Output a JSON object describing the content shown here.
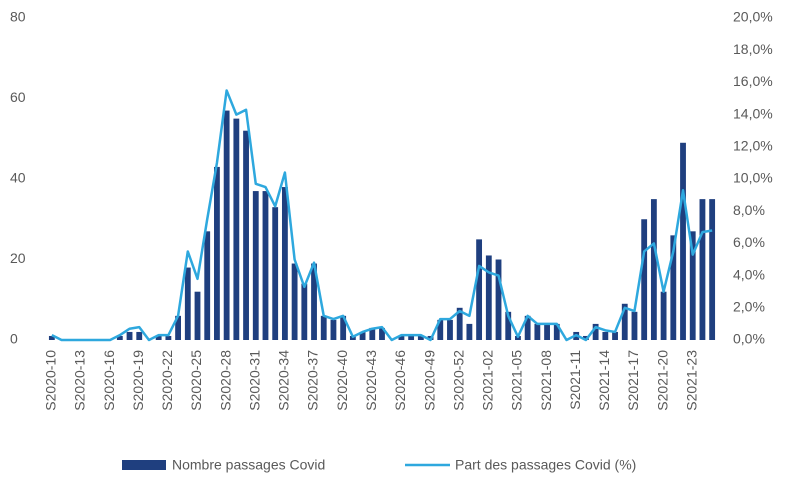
{
  "chart_data": {
    "type": "bar-line",
    "categories": [
      "S2020-10",
      null,
      null,
      "S2020-13",
      null,
      null,
      "S2020-16",
      null,
      null,
      "S2020-19",
      null,
      null,
      "S2020-22",
      null,
      null,
      "S2020-25",
      null,
      null,
      "S2020-28",
      null,
      null,
      "S2020-31",
      null,
      null,
      "S2020-34",
      null,
      null,
      "S2020-37",
      null,
      null,
      "S2020-40",
      null,
      null,
      "S2020-43",
      null,
      null,
      "S2020-46",
      null,
      null,
      "S2020-49",
      null,
      null,
      "S2020-52",
      null,
      null,
      "S2021-02",
      null,
      null,
      "S2021-05",
      null,
      null,
      "S2021-08",
      null,
      null,
      "S2021-11",
      null,
      null,
      "S2021-14",
      null,
      null,
      "S2021-17",
      null,
      null,
      "S2021-20",
      null,
      null,
      "S2021-23",
      null,
      null
    ],
    "series": [
      {
        "name": "Nombre passages Covid",
        "type": "bar",
        "color": "#1f3f7f",
        "values": [
          1,
          0,
          0,
          0,
          0,
          0,
          0,
          1,
          2,
          2,
          0,
          1,
          1,
          6,
          18,
          12,
          27,
          43,
          57,
          55,
          52,
          37,
          37,
          33,
          38,
          19,
          14,
          19,
          6,
          5,
          6,
          1,
          2,
          3,
          3,
          0,
          1,
          1,
          1,
          1,
          5,
          5,
          8,
          4,
          25,
          21,
          20,
          7,
          1,
          6,
          4,
          4,
          4,
          0,
          2,
          1,
          4,
          2,
          2,
          9,
          7,
          30,
          35,
          12,
          26,
          49,
          27,
          35,
          35
        ]
      },
      {
        "name": "Part des passages Covid (%)",
        "type": "line",
        "axis": "y2",
        "color": "#2ea8de",
        "values": [
          0.3,
          0,
          0,
          0,
          0,
          0,
          0,
          0.3,
          0.7,
          0.8,
          0,
          0.3,
          0.3,
          1.5,
          5.5,
          3.8,
          7.5,
          11,
          15.5,
          14,
          14.3,
          9.7,
          9.5,
          8.3,
          10.4,
          5,
          3.3,
          4.8,
          1.5,
          1.3,
          1.5,
          0.2,
          0.5,
          0.7,
          0.8,
          0,
          0.3,
          0.3,
          0.3,
          0,
          1.3,
          1.3,
          1.8,
          1.5,
          4.6,
          4.2,
          4,
          1.5,
          0.2,
          1.5,
          1,
          1,
          1,
          0,
          0.3,
          0,
          0.8,
          0.6,
          0.5,
          2,
          1.8,
          5.5,
          6,
          3,
          5.5,
          9.3,
          5.3,
          6.7,
          6.8
        ]
      }
    ],
    "ylim": [
      0,
      80
    ],
    "yticks": [
      0,
      20,
      40,
      60,
      80
    ],
    "y2lim": [
      0,
      20
    ],
    "y2ticks": [
      {
        "value": 0,
        "label": "0,0%"
      },
      {
        "value": 2,
        "label": "2,0%"
      },
      {
        "value": 4,
        "label": "4,0%"
      },
      {
        "value": 6,
        "label": "6,0%"
      },
      {
        "value": 8,
        "label": "8,0%"
      },
      {
        "value": 10,
        "label": "10,0%"
      },
      {
        "value": 12,
        "label": "12,0%"
      },
      {
        "value": 14,
        "label": "14,0%"
      },
      {
        "value": 16,
        "label": "16,0%"
      },
      {
        "value": 18,
        "label": "18,0%"
      },
      {
        "value": 20,
        "label": "20,0%"
      }
    ],
    "grid": false,
    "legend": "bottom"
  }
}
